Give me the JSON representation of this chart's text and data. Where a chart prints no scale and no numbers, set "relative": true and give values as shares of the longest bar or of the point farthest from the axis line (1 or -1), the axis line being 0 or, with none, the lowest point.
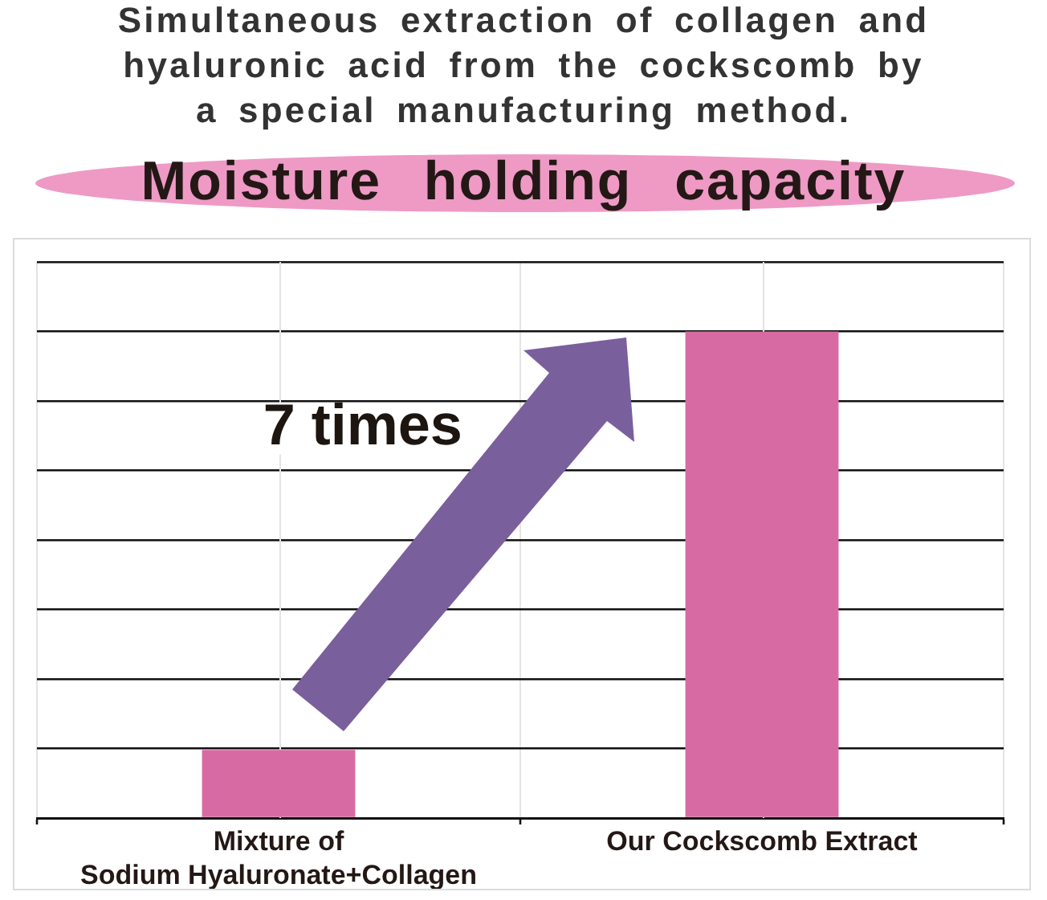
{
  "chart_data": {
    "type": "bar",
    "title": "Simultaneous extraction of collagen and\nhyaluronic acid from the cockscomb by\na special manufacturing method.",
    "subtitle": "Moisture holding capacity",
    "categories": [
      "Mixture of\nSodium Hyaluronate+Collagen",
      "Our Cockscomb Extract"
    ],
    "values": [
      0.14,
      1
    ],
    "color": "#d86aa3",
    "relative": true,
    "grid": true,
    "annotations": [
      "7 times"
    ]
  }
}
